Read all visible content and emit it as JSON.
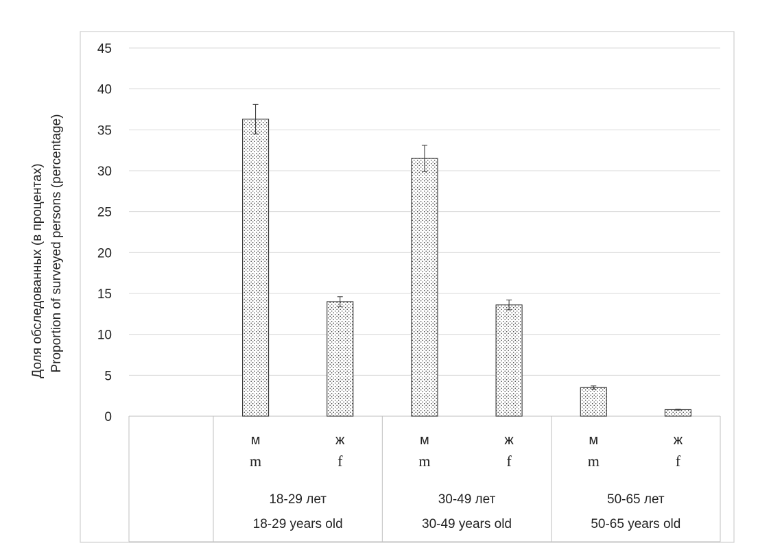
{
  "chart_data": {
    "type": "bar",
    "ylabel_ru": "Доля обследованных (в процентах)",
    "ylabel_en": "Proportion of surveyed persons (percentage)",
    "ylim": [
      0,
      45
    ],
    "yticks": [
      0,
      5,
      10,
      15,
      20,
      25,
      30,
      35,
      40,
      45
    ],
    "grid": true,
    "groups": [
      {
        "label_ru": "18-29 лет",
        "label_en": "18-29 years old"
      },
      {
        "label_ru": "30-49 лет",
        "label_en": "30-49 years old"
      },
      {
        "label_ru": "50-65 лет",
        "label_en": "50-65 years old"
      }
    ],
    "categories": [
      {
        "label_ru": "м",
        "label_en": "m",
        "group": 0
      },
      {
        "label_ru": "ж",
        "label_en": "f",
        "group": 0
      },
      {
        "label_ru": "м",
        "label_en": "m",
        "group": 1
      },
      {
        "label_ru": "ж",
        "label_en": "f",
        "group": 1
      },
      {
        "label_ru": "м",
        "label_en": "m",
        "group": 2
      },
      {
        "label_ru": "ж",
        "label_en": "f",
        "group": 2
      }
    ],
    "values": [
      36.3,
      14.0,
      31.5,
      13.6,
      3.5,
      0.8
    ],
    "error_bars": [
      1.8,
      0.6,
      1.6,
      0.6,
      0.2,
      0.05
    ]
  }
}
